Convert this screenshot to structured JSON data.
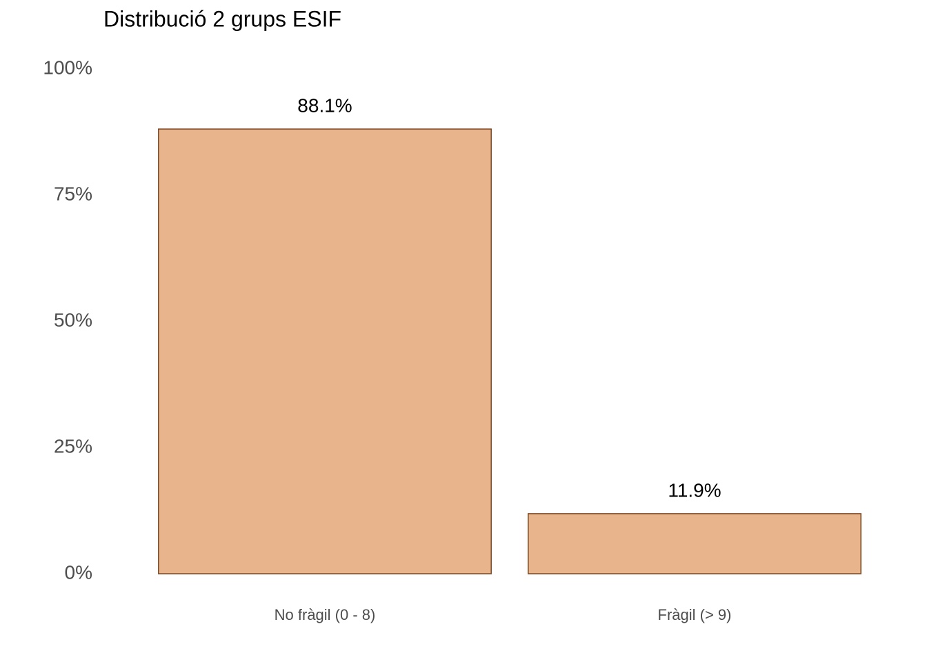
{
  "chart_data": {
    "type": "bar",
    "title": "Distribució 2 grups ESIF",
    "categories": [
      "No fràgil (0 - 8)",
      "Fràgil (> 9)"
    ],
    "values": [
      88.1,
      11.9
    ],
    "value_labels": [
      "88.1%",
      "11.9%"
    ],
    "color": "#e8b48c",
    "edgecolor": "#7f4520",
    "ylim": [
      0,
      100
    ],
    "yticks": [
      {
        "value": 0,
        "label": "0%"
      },
      {
        "value": 25,
        "label": "25%"
      },
      {
        "value": 50,
        "label": "50%"
      },
      {
        "value": 75,
        "label": "75%"
      },
      {
        "value": 100,
        "label": "100%"
      }
    ],
    "grid": false
  }
}
